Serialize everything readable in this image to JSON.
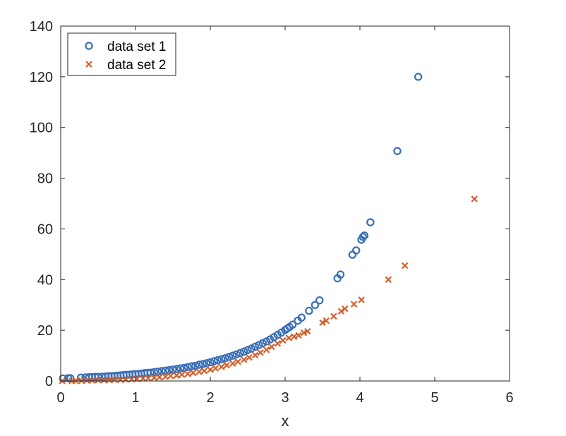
{
  "chart_data": {
    "type": "scatter",
    "title": "",
    "xlabel": "x",
    "ylabel": "",
    "xlim": [
      0,
      6
    ],
    "ylim": [
      0,
      140
    ],
    "xticks": [
      0,
      1,
      2,
      3,
      4,
      5,
      6
    ],
    "yticks": [
      0,
      20,
      40,
      60,
      80,
      100,
      120,
      140
    ],
    "grid": false,
    "legend_position": "top-left",
    "series": [
      {
        "name": "data set 1",
        "marker": "circle",
        "color": "#3a6fb5",
        "points": [
          [
            0.03,
            1.0
          ],
          [
            0.1,
            1.1
          ],
          [
            0.13,
            1.1
          ],
          [
            0.27,
            1.3
          ],
          [
            0.33,
            1.4
          ],
          [
            0.38,
            1.5
          ],
          [
            0.42,
            1.5
          ],
          [
            0.46,
            1.6
          ],
          [
            0.5,
            1.6
          ],
          [
            0.55,
            1.7
          ],
          [
            0.6,
            1.8
          ],
          [
            0.64,
            1.9
          ],
          [
            0.68,
            1.9
          ],
          [
            0.72,
            2.0
          ],
          [
            0.76,
            2.1
          ],
          [
            0.8,
            2.2
          ],
          [
            0.84,
            2.3
          ],
          [
            0.88,
            2.4
          ],
          [
            0.92,
            2.5
          ],
          [
            0.96,
            2.6
          ],
          [
            1.0,
            2.7
          ],
          [
            1.04,
            2.8
          ],
          [
            1.08,
            2.9
          ],
          [
            1.12,
            3.1
          ],
          [
            1.16,
            3.2
          ],
          [
            1.2,
            3.3
          ],
          [
            1.25,
            3.5
          ],
          [
            1.3,
            3.7
          ],
          [
            1.35,
            3.9
          ],
          [
            1.4,
            4.1
          ],
          [
            1.45,
            4.3
          ],
          [
            1.5,
            4.5
          ],
          [
            1.55,
            4.7
          ],
          [
            1.6,
            5.0
          ],
          [
            1.65,
            5.2
          ],
          [
            1.7,
            5.5
          ],
          [
            1.75,
            5.8
          ],
          [
            1.8,
            6.0
          ],
          [
            1.85,
            6.4
          ],
          [
            1.9,
            6.7
          ],
          [
            1.95,
            7.0
          ],
          [
            2.0,
            7.4
          ],
          [
            2.05,
            7.8
          ],
          [
            2.1,
            8.2
          ],
          [
            2.15,
            8.6
          ],
          [
            2.2,
            9.0
          ],
          [
            2.25,
            9.5
          ],
          [
            2.3,
            10.0
          ],
          [
            2.35,
            10.5
          ],
          [
            2.4,
            11.0
          ],
          [
            2.45,
            11.6
          ],
          [
            2.5,
            12.2
          ],
          [
            2.55,
            12.8
          ],
          [
            2.6,
            13.5
          ],
          [
            2.65,
            14.2
          ],
          [
            2.7,
            14.9
          ],
          [
            2.75,
            15.6
          ],
          [
            2.8,
            16.4
          ],
          [
            2.85,
            17.3
          ],
          [
            2.9,
            18.2
          ],
          [
            2.95,
            19.1
          ],
          [
            3.0,
            20.1
          ],
          [
            3.03,
            20.7
          ],
          [
            3.06,
            21.3
          ],
          [
            3.1,
            22.2
          ],
          [
            3.17,
            23.8
          ],
          [
            3.22,
            25.0
          ],
          [
            3.32,
            27.7
          ],
          [
            3.4,
            30.0
          ],
          [
            3.46,
            31.8
          ],
          [
            3.7,
            40.5
          ],
          [
            3.74,
            42.0
          ],
          [
            3.9,
            49.8
          ],
          [
            3.95,
            51.5
          ],
          [
            4.02,
            55.7
          ],
          [
            4.04,
            56.8
          ],
          [
            4.06,
            57.4
          ],
          [
            4.14,
            62.6
          ],
          [
            4.5,
            90.7
          ],
          [
            4.78,
            120.0
          ]
        ]
      },
      {
        "name": "data set 2",
        "marker": "x",
        "color": "#d35f2b",
        "points": [
          [
            0.02,
            0.0
          ],
          [
            0.15,
            0.0
          ],
          [
            0.2,
            0.1
          ],
          [
            0.28,
            0.1
          ],
          [
            0.35,
            0.2
          ],
          [
            0.42,
            0.2
          ],
          [
            0.5,
            0.3
          ],
          [
            0.58,
            0.3
          ],
          [
            0.65,
            0.4
          ],
          [
            0.72,
            0.5
          ],
          [
            0.8,
            0.5
          ],
          [
            0.87,
            0.6
          ],
          [
            0.95,
            0.7
          ],
          [
            1.02,
            0.8
          ],
          [
            1.1,
            1.0
          ],
          [
            1.17,
            1.1
          ],
          [
            1.25,
            1.3
          ],
          [
            1.32,
            1.5
          ],
          [
            1.4,
            1.7
          ],
          [
            1.47,
            2.0
          ],
          [
            1.55,
            2.2
          ],
          [
            1.62,
            2.5
          ],
          [
            1.7,
            2.8
          ],
          [
            1.77,
            3.2
          ],
          [
            1.85,
            3.6
          ],
          [
            1.92,
            4.0
          ],
          [
            2.0,
            4.5
          ],
          [
            2.07,
            5.0
          ],
          [
            2.15,
            5.6
          ],
          [
            2.22,
            6.2
          ],
          [
            2.3,
            6.9
          ],
          [
            2.37,
            7.6
          ],
          [
            2.45,
            8.4
          ],
          [
            2.52,
            9.3
          ],
          [
            2.6,
            10.2
          ],
          [
            2.67,
            11.2
          ],
          [
            2.75,
            12.3
          ],
          [
            2.82,
            13.5
          ],
          [
            2.9,
            14.8
          ],
          [
            2.97,
            16.0
          ],
          [
            3.05,
            17.0
          ],
          [
            3.12,
            17.5
          ],
          [
            3.18,
            18.0
          ],
          [
            3.25,
            19.0
          ],
          [
            3.3,
            19.6
          ],
          [
            3.5,
            23.0
          ],
          [
            3.55,
            23.8
          ],
          [
            3.65,
            25.5
          ],
          [
            3.75,
            27.5
          ],
          [
            3.8,
            28.5
          ],
          [
            3.92,
            30.3
          ],
          [
            4.02,
            32.0
          ],
          [
            4.38,
            40.0
          ],
          [
            4.6,
            45.5
          ],
          [
            5.53,
            71.8
          ]
        ]
      }
    ]
  }
}
